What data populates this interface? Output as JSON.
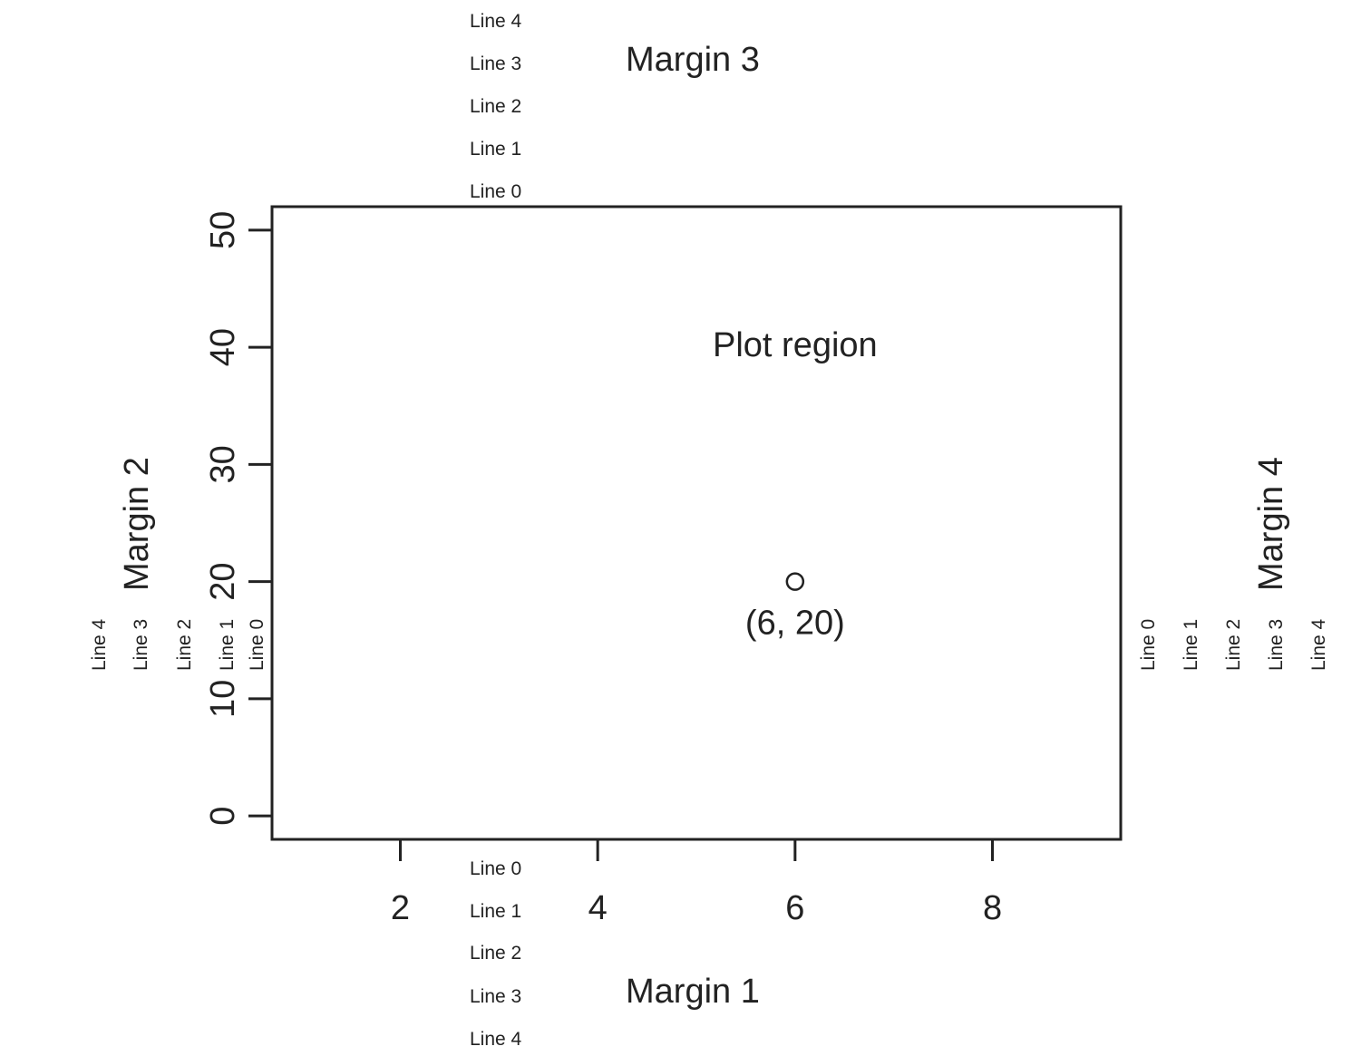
{
  "chart_data": {
    "type": "scatter",
    "title": "",
    "xlabel": "",
    "ylabel": "",
    "xlim": [
      0.7,
      9.3
    ],
    "ylim": [
      -2,
      52
    ],
    "x_ticks": [
      2,
      4,
      6,
      8
    ],
    "x_tick_labels": [
      "2",
      "4",
      "6",
      "8"
    ],
    "y_ticks": [
      0,
      10,
      20,
      30,
      40,
      50
    ],
    "y_tick_labels": [
      "0",
      "10",
      "20",
      "30",
      "40",
      "50"
    ],
    "grid": false,
    "series": [
      {
        "x": [
          6
        ],
        "y": [
          20
        ],
        "marker": "open-circle"
      }
    ],
    "annotations": {
      "plot_region": "Plot region",
      "point_label": "(6, 20)"
    },
    "margins": {
      "bottom": {
        "title": "Margin 1",
        "lines": [
          "Line 0",
          "Line 1",
          "Line 2",
          "Line 3",
          "Line 4"
        ]
      },
      "left": {
        "title": "Margin 2",
        "lines": [
          "Line 0",
          "Line 1",
          "Line 2",
          "Line 3",
          "Line 4"
        ]
      },
      "top": {
        "title": "Margin 3",
        "lines": [
          "Line 0",
          "Line 1",
          "Line 2",
          "Line 3",
          "Line 4"
        ]
      },
      "right": {
        "title": "Margin 4",
        "lines": [
          "Line 0",
          "Line 1",
          "Line 2",
          "Line 3",
          "Line 4"
        ]
      }
    },
    "colors": {
      "ink": "#222222",
      "background": "#ffffff"
    }
  }
}
